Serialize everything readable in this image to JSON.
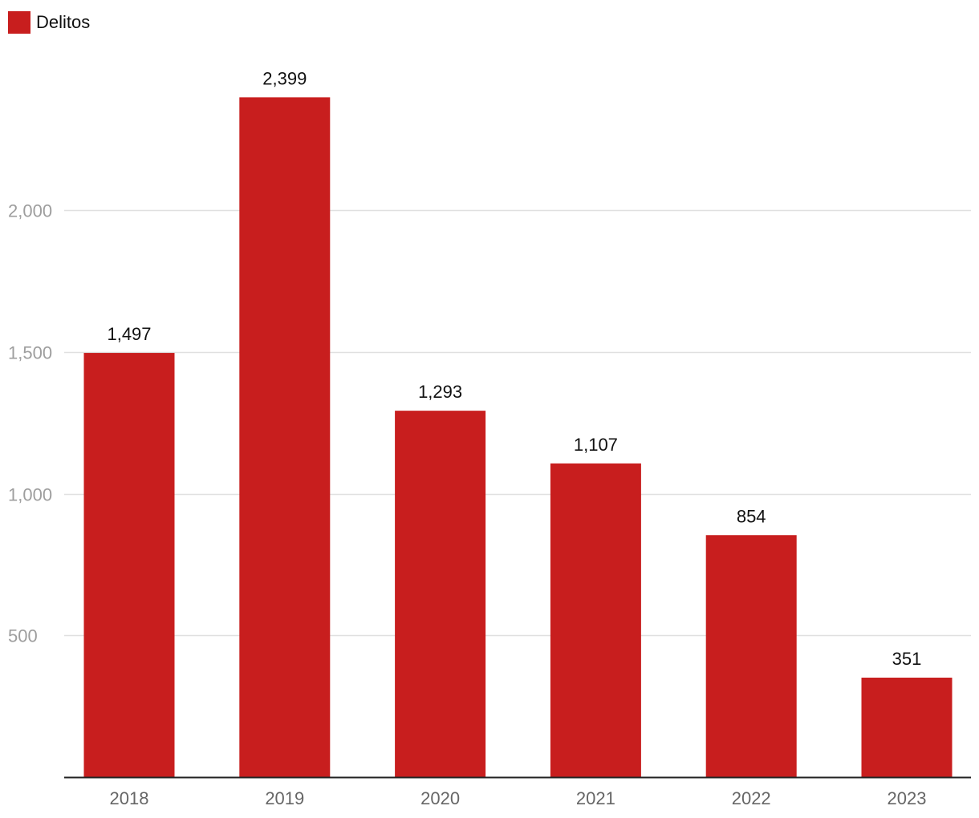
{
  "legend": {
    "label": "Delitos",
    "color": "#c81e1e"
  },
  "chart_data": {
    "type": "bar",
    "categories": [
      "2018",
      "2019",
      "2020",
      "2021",
      "2022",
      "2023"
    ],
    "series": [
      {
        "name": "Delitos",
        "values": [
          1497,
          2399,
          1293,
          1107,
          854,
          351
        ],
        "color": "#c81e1e"
      }
    ],
    "data_labels": [
      "1,497",
      "2,399",
      "1,293",
      "1,107",
      "854",
      "351"
    ],
    "y_ticks": [
      500,
      1000,
      1500,
      2000
    ],
    "y_tick_labels": [
      "500",
      "1,000",
      "1,500",
      "2,000"
    ],
    "ylim": [
      0,
      2400
    ],
    "grid": true,
    "legend_position": "top-left",
    "title": "",
    "xlabel": "",
    "ylabel": ""
  }
}
